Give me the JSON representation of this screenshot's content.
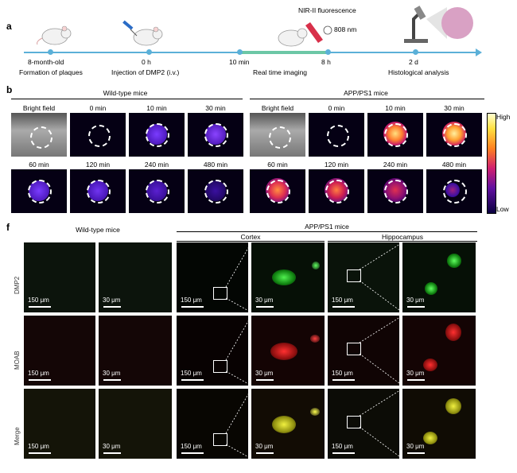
{
  "panel_a": {
    "letter": "a",
    "timeline": [
      {
        "time": "8-month-old",
        "event": "Formation of plaques"
      },
      {
        "time": "0 h",
        "event": "Injection of DMP2 (i.v.)"
      },
      {
        "time": "10 min",
        "event": ""
      },
      {
        "time": "",
        "event": "Real time imaging"
      },
      {
        "time": "8 h",
        "event": ""
      },
      {
        "time": "2 d",
        "event": "Histological analysis"
      }
    ],
    "nir_label": "NIR-II fluorescence",
    "laser_label": "808 nm",
    "colors": {
      "axis": "#5bb0d8",
      "highlight": "#6cc7a6"
    }
  },
  "panel_b": {
    "letter": "b",
    "groups": [
      "Wild-type mice",
      "APP/PS1 mice"
    ],
    "tiles_row1": [
      "Bright field",
      "0 min",
      "10 min",
      "30 min"
    ],
    "tiles_row2": [
      "60 min",
      "120 min",
      "240 min",
      "480 min"
    ],
    "colorbar": {
      "high": "High",
      "low": "Low"
    }
  },
  "panel_f": {
    "letter": "f",
    "wt_header": "Wild-type mice",
    "app_header": "APP/PS1 mice",
    "sub_headers": [
      "Cortex",
      "Hippocampus"
    ],
    "rows": [
      "DMP2",
      "MOAB",
      "Merge"
    ],
    "scale_large": "150 μm",
    "scale_small": "30 μm"
  }
}
